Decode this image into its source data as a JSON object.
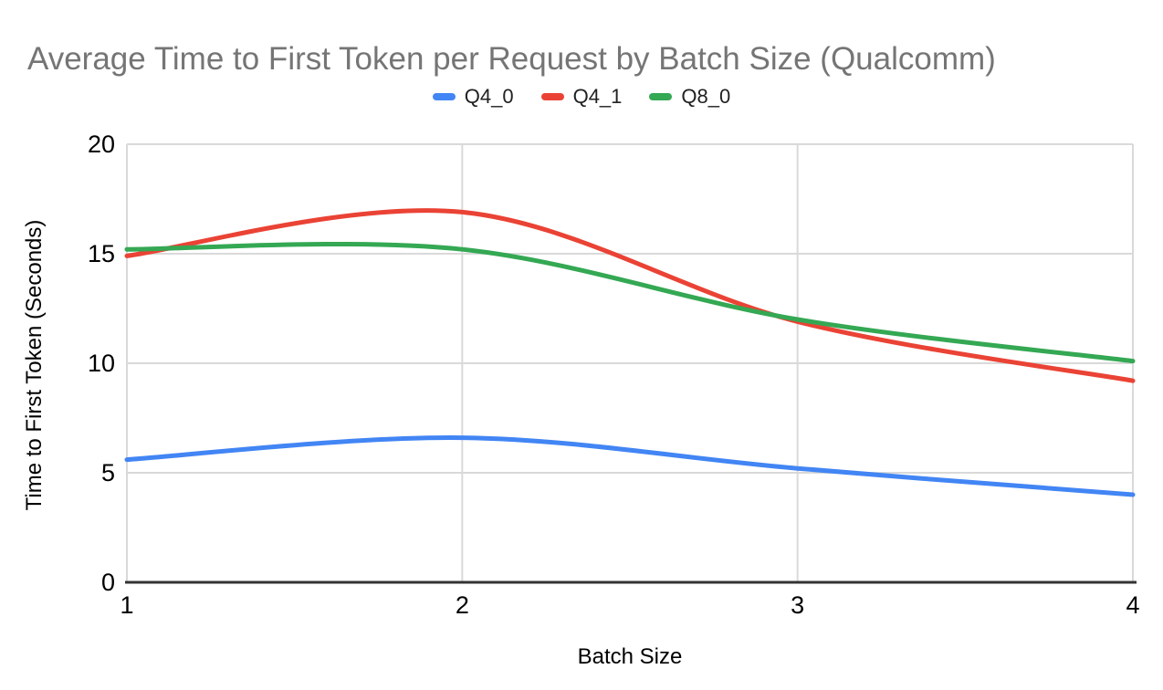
{
  "chart_data": {
    "type": "line",
    "title": "Average Time to First Token per Request by Batch Size (Qualcomm)",
    "xlabel": "Batch Size",
    "ylabel": "Time to First Token (Seconds)",
    "x": [
      1,
      2,
      3,
      4
    ],
    "xticks": [
      1,
      2,
      3,
      4
    ],
    "yticks": [
      0,
      5,
      10,
      15,
      20
    ],
    "xlim": [
      1,
      4
    ],
    "ylim": [
      0,
      20
    ],
    "grid": true,
    "smooth": true,
    "legend_position": "top",
    "series": [
      {
        "name": "Q4_0",
        "color": "#4285F4",
        "values": [
          5.6,
          6.6,
          5.2,
          4.0
        ]
      },
      {
        "name": "Q4_1",
        "color": "#EA4335",
        "values": [
          14.9,
          16.9,
          11.9,
          9.2
        ]
      },
      {
        "name": "Q8_0",
        "color": "#34A853",
        "values": [
          15.2,
          15.2,
          12.0,
          10.1
        ]
      }
    ]
  },
  "styles": {
    "title_color": "#757575",
    "grid_color": "#d9d9d9",
    "axis_color": "#333333",
    "tick_color": "#000000",
    "background": "#ffffff"
  }
}
